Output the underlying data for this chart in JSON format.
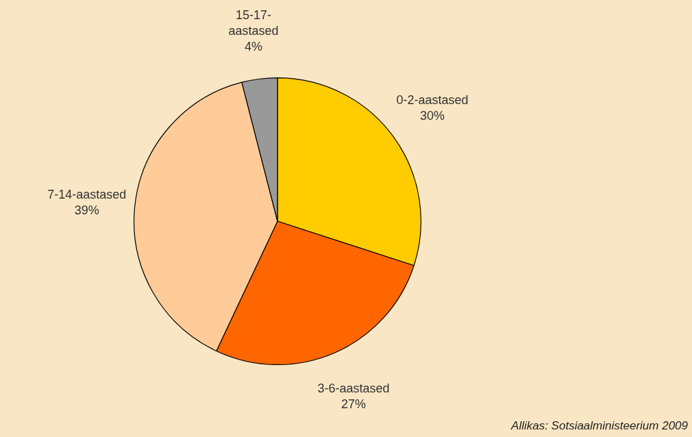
{
  "chart_data": {
    "type": "pie",
    "categories": [
      "0-2-aastased",
      "3-6-aastased",
      "7-14-aastased",
      "15-17-aastased"
    ],
    "values": [
      30,
      27,
      39,
      4
    ],
    "value_labels": [
      "30%",
      "27%",
      "39%",
      "4%"
    ],
    "colors": [
      "#ffcc00",
      "#ff6600",
      "#ffcc99",
      "#999999"
    ],
    "annotations": [
      "Allikas: Sotsiaalministeerium 2009"
    ]
  }
}
